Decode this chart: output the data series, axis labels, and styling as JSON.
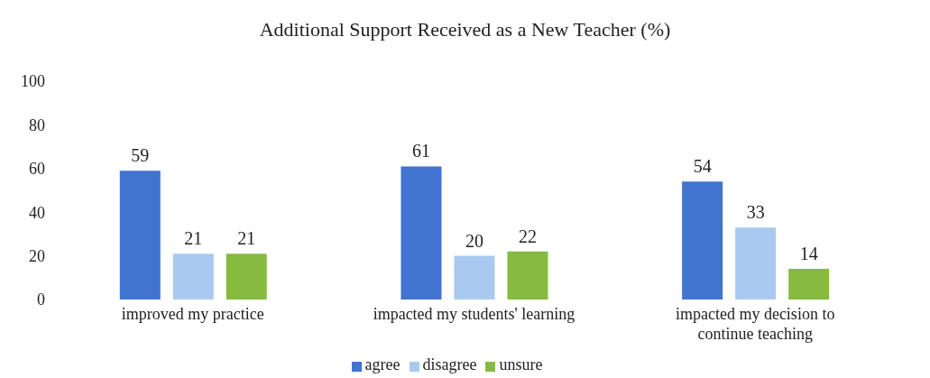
{
  "chart_data": {
    "type": "bar",
    "title": "Additional Support Received as a New Teacher (%)",
    "categories": [
      "improved my practice",
      "impacted my students' learning",
      "impacted my decision to continue teaching"
    ],
    "series": [
      {
        "name": "agree",
        "color": "#4173d1",
        "values": [
          59,
          61,
          54
        ]
      },
      {
        "name": "disagree",
        "color": "#a9c9f0",
        "values": [
          21,
          20,
          33
        ]
      },
      {
        "name": "unsure",
        "color": "#86bb3f",
        "values": [
          21,
          22,
          14
        ]
      }
    ],
    "ylim": [
      0,
      100
    ],
    "yticks": [
      0,
      20,
      40,
      60,
      80,
      100
    ],
    "grid": false,
    "legend": "bottom",
    "data_labels": true
  }
}
